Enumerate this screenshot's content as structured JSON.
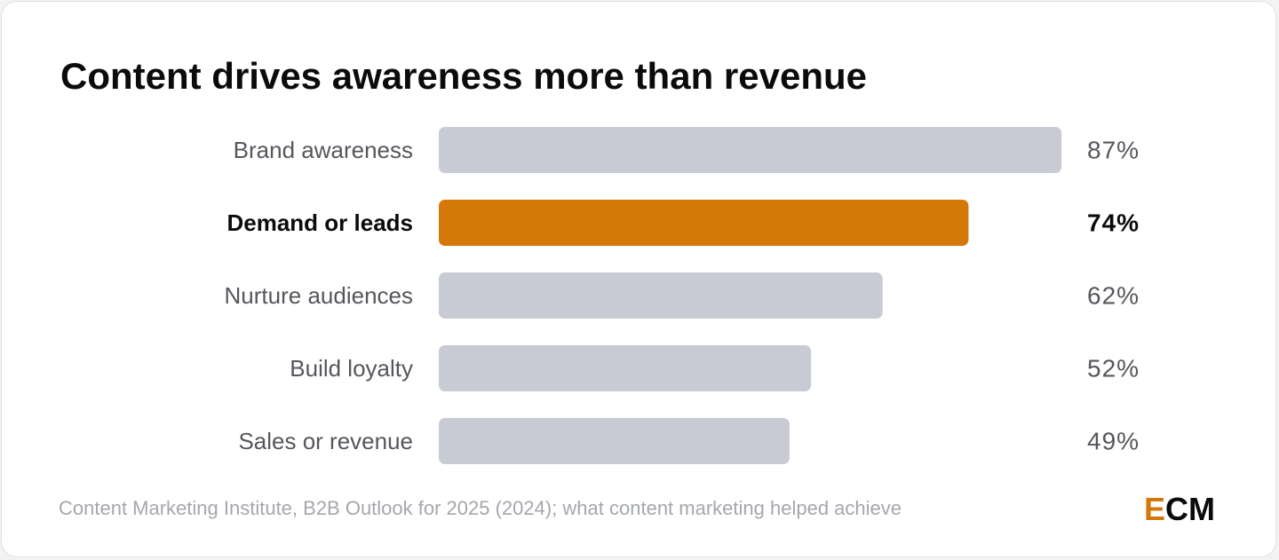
{
  "brand": {
    "accent": "#d4780a",
    "bar_default": "#c8cbd3",
    "logo": {
      "first": "E",
      "rest": "CM"
    }
  },
  "source_text": "Content Marketing Institute, B2B Outlook for 2025 (2024); what content marketing helped achieve",
  "chart_data": {
    "type": "bar",
    "orientation": "horizontal",
    "title": "Content drives awareness more than revenue",
    "xlabel": "",
    "ylabel": "",
    "xlim": [
      0,
      100
    ],
    "grid": false,
    "legend": "none",
    "categories": [
      "Brand awareness",
      "Demand or leads",
      "Nurture audiences",
      "Build loyalty",
      "Sales or revenue"
    ],
    "values": [
      87,
      74,
      62,
      52,
      49
    ],
    "value_labels": [
      "87%",
      "74%",
      "62%",
      "52%",
      "49%"
    ],
    "highlighted": "Demand or leads",
    "highlight_color": "#d4780a",
    "default_color": "#c8cbd3"
  }
}
